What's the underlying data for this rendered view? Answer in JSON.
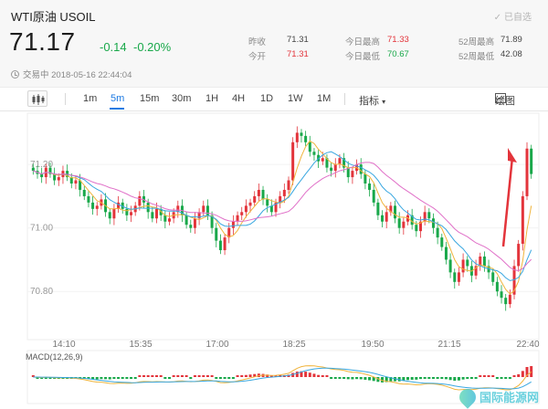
{
  "header": {
    "title": "WTI原油 USOIL",
    "added_label": "已自选",
    "price": "71.17",
    "change": "-0.14",
    "change_pct": "-0.20%",
    "status": "交易中 2018-05-16 22:44:04"
  },
  "stats": [
    {
      "label": "昨收",
      "value": "71.31",
      "tone": "dark"
    },
    {
      "label": "今开",
      "value": "71.31",
      "tone": "red"
    },
    {
      "label": "今日最高",
      "value": "71.33",
      "tone": "red"
    },
    {
      "label": "今日最低",
      "value": "70.67",
      "tone": "green"
    },
    {
      "label": "52周最高",
      "value": "71.89",
      "tone": "dark"
    },
    {
      "label": "52周最低",
      "value": "42.08",
      "tone": "dark"
    }
  ],
  "toolbar": {
    "periods": [
      "1m",
      "5m",
      "15m",
      "30m",
      "1H",
      "4H",
      "1D",
      "1W",
      "1M"
    ],
    "active_period": "5m",
    "indicators_label": "指标",
    "draw_label": "绘图"
  },
  "chart_data": {
    "type": "candlestick",
    "y_ticks": [
      "71.20",
      "71.00",
      "70.80"
    ],
    "ylim": [
      70.7,
      71.35
    ],
    "x_ticks": [
      "14:10",
      "15:35",
      "17:00",
      "18:25",
      "19:50",
      "21:15",
      "22:40"
    ],
    "macd_label": "MACD(12,26,9)",
    "up_color": "#e3343b",
    "down_color": "#19a84a",
    "close": [
      71.18,
      71.17,
      71.16,
      71.19,
      71.17,
      71.15,
      71.16,
      71.18,
      71.16,
      71.14,
      71.15,
      71.12,
      71.1,
      71.08,
      71.06,
      71.07,
      71.09,
      71.05,
      71.03,
      71.06,
      71.08,
      71.06,
      71.04,
      71.05,
      71.07,
      71.1,
      71.08,
      71.05,
      71.03,
      71.06,
      71.04,
      71.02,
      71.03,
      71.05,
      71.07,
      71.04,
      71.01,
      71.0,
      71.03,
      71.05,
      71.07,
      71.04,
      71.0,
      70.96,
      70.93,
      70.97,
      71.0,
      71.02,
      71.04,
      71.05,
      71.07,
      71.08,
      71.1,
      71.12,
      71.09,
      71.07,
      71.05,
      71.08,
      71.1,
      71.12,
      71.15,
      71.27,
      71.3,
      71.29,
      71.27,
      71.24,
      71.23,
      71.21,
      71.22,
      71.19,
      71.18,
      71.2,
      71.22,
      71.19,
      71.16,
      71.18,
      71.2,
      71.17,
      71.14,
      71.12,
      71.08,
      71.04,
      71.02,
      71.05,
      71.07,
      71.03,
      71.0,
      71.02,
      71.04,
      71.01,
      70.99,
      71.02,
      71.05,
      71.03,
      71.0,
      70.97,
      70.94,
      70.9,
      70.86,
      70.83,
      70.86,
      70.9,
      70.88,
      70.85,
      70.88,
      70.91,
      70.88,
      70.86,
      70.83,
      70.8,
      70.78,
      70.76,
      70.79,
      70.88,
      70.95,
      71.1,
      71.25,
      71.17
    ]
  },
  "watermark": "国际能源网"
}
